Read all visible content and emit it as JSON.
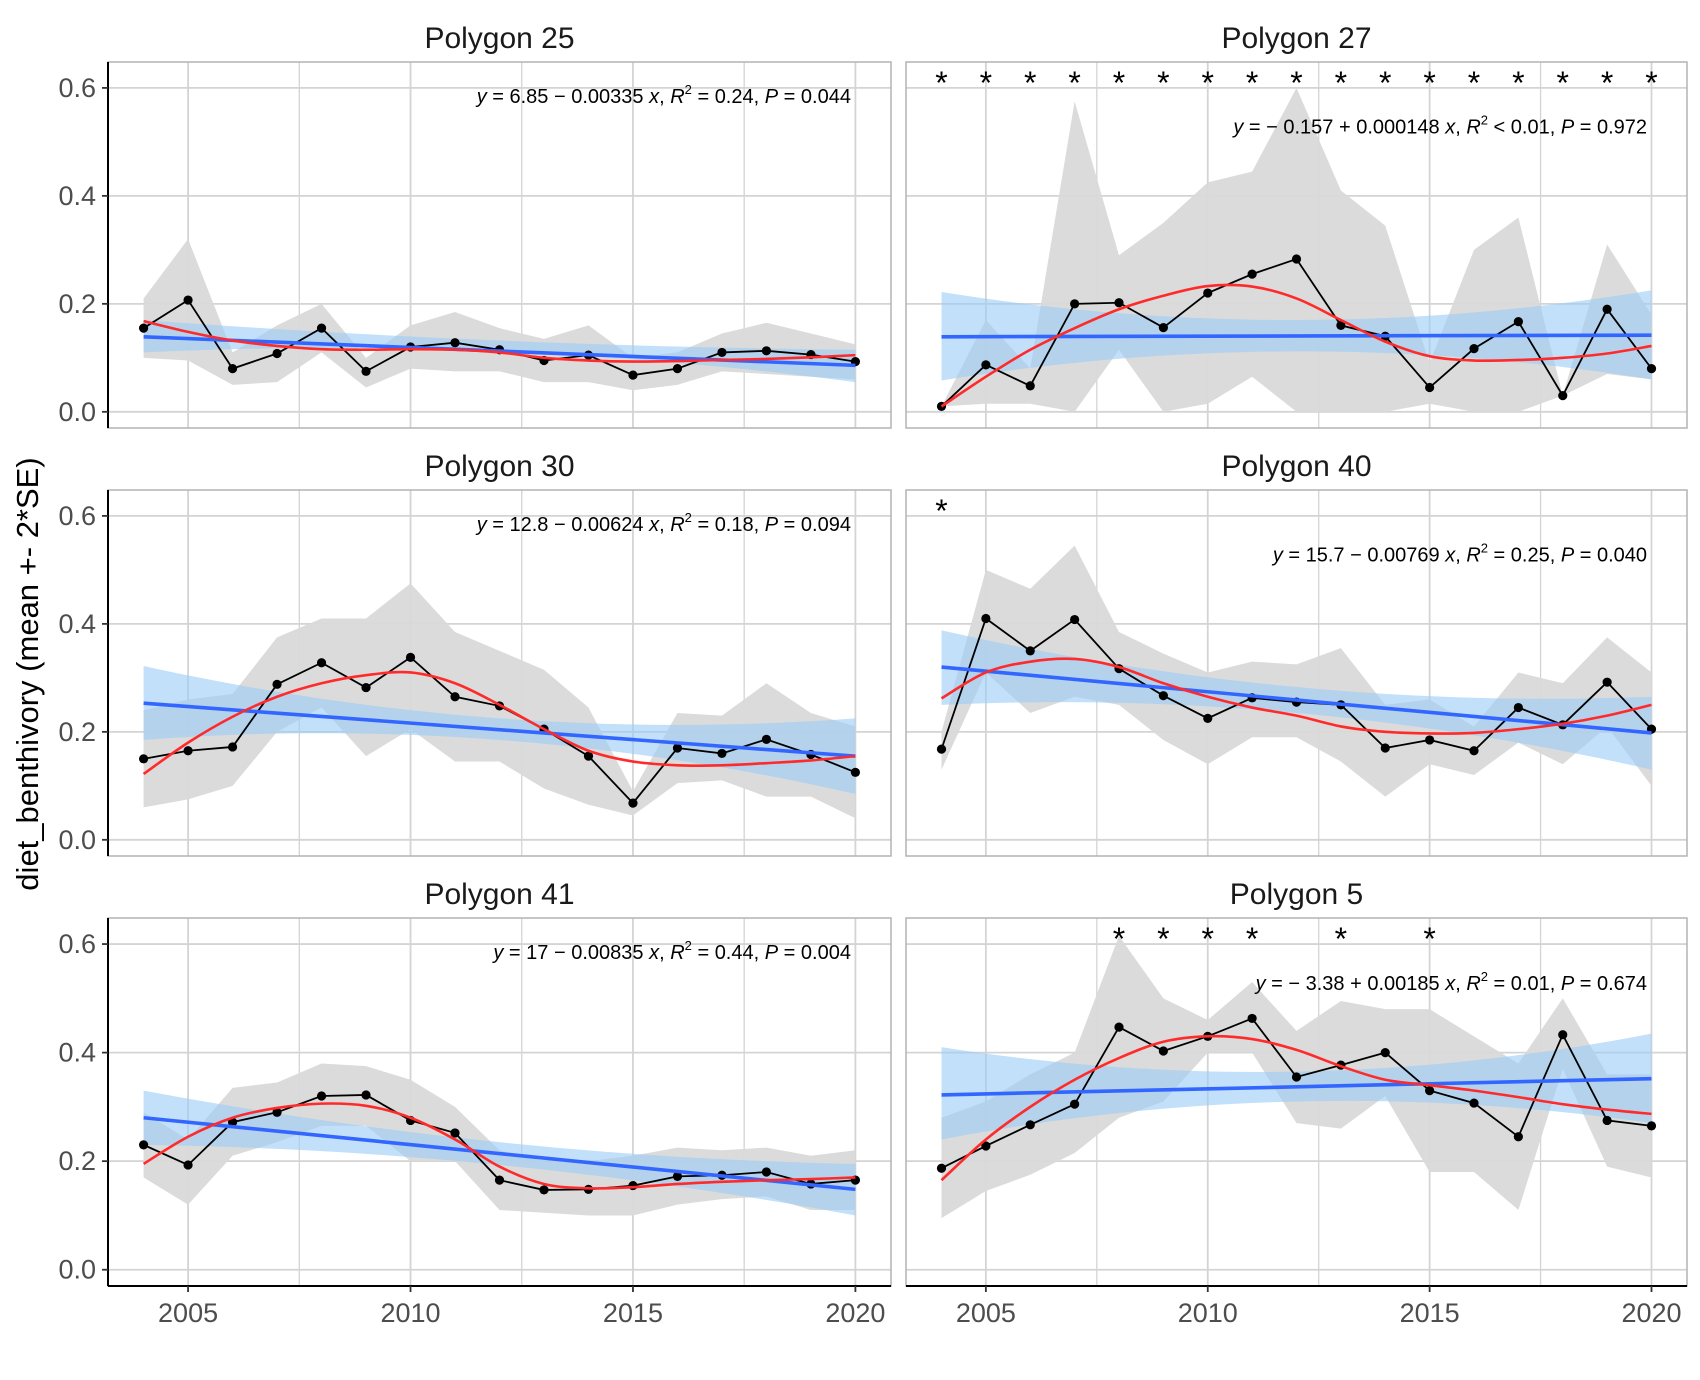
{
  "chart_data": {
    "type": "line",
    "ylabel": "diet_benthivory (mean +- 2*SE)",
    "xlabel": "",
    "xlim": [
      2003.2,
      2020.8
    ],
    "ylim": [
      -0.03,
      0.648
    ],
    "x_ticks": [
      2005,
      2010,
      2015,
      2020
    ],
    "x_tick_labels": [
      "2005",
      "2010",
      "2015",
      "2020"
    ],
    "y_ticks": [
      0,
      0.2,
      0.4,
      0.6
    ],
    "y_tick_labels": [
      "0.0",
      "0.2",
      "0.4",
      "0.6"
    ],
    "grid": true,
    "years": [
      2004,
      2005,
      2006,
      2007,
      2008,
      2009,
      2010,
      2011,
      2012,
      2013,
      2014,
      2015,
      2016,
      2017,
      2018,
      2019,
      2020
    ],
    "colors": {
      "mean_line": "#000000",
      "se_band": "#d9d9d9",
      "linear_fit": "#3366ff",
      "linear_ci": "#99ccf5",
      "loess": "#ff2a2a"
    },
    "panels": [
      {
        "title": "Polygon 25",
        "eq": {
          "rhs": "6.85 − 0.00335",
          "r2_op": "=",
          "r2": "0.24",
          "p": "0.044"
        },
        "mean": [
          0.155,
          0.207,
          0.08,
          0.108,
          0.155,
          0.075,
          0.12,
          0.128,
          0.115,
          0.095,
          0.105,
          0.068,
          0.08,
          0.11,
          0.113,
          0.106,
          0.093
        ],
        "se_upper": [
          0.21,
          0.32,
          0.11,
          0.16,
          0.2,
          0.1,
          0.16,
          0.185,
          0.155,
          0.135,
          0.16,
          0.1,
          0.11,
          0.145,
          0.165,
          0.145,
          0.125
        ],
        "se_lower": [
          0.1,
          0.095,
          0.05,
          0.055,
          0.11,
          0.045,
          0.08,
          0.075,
          0.075,
          0.055,
          0.055,
          0.04,
          0.05,
          0.075,
          0.07,
          0.065,
          0.06
        ],
        "loess": [
          0.168,
          0.148,
          0.132,
          0.122,
          0.116,
          0.115,
          0.116,
          0.115,
          0.11,
          0.1,
          0.095,
          0.093,
          0.094,
          0.096,
          0.098,
          0.101,
          0.105
        ],
        "linear_fit": [
          0.139,
          0.086
        ],
        "linear_ci_lower": [
          0.11,
          0.112,
          0.055
        ],
        "linear_ci_upper": [
          0.17,
          0.132,
          0.115
        ],
        "significant_years": []
      },
      {
        "title": "Polygon 27",
        "eq": {
          "rhs": "− 0.157 + 0.000148",
          "r2_op": "<",
          "r2": "0.01",
          "p": "0.972"
        },
        "mean": [
          0.01,
          0.087,
          0.048,
          0.2,
          0.202,
          0.156,
          0.22,
          0.255,
          0.283,
          0.16,
          0.14,
          0.045,
          0.117,
          0.167,
          0.03,
          0.19,
          0.08
        ],
        "se_upper": [
          0.01,
          0.17,
          0.08,
          0.575,
          0.29,
          0.35,
          0.425,
          0.445,
          0.6,
          0.41,
          0.345,
          0.09,
          0.3,
          0.36,
          0.03,
          0.31,
          0.18
        ],
        "se_lower": [
          0.01,
          0.015,
          0.015,
          0,
          0.115,
          0,
          0.015,
          0.065,
          0,
          0,
          0,
          0.015,
          0,
          0,
          0.03,
          0.07,
          0.06
        ],
        "loess": [
          0.01,
          0.065,
          0.115,
          0.155,
          0.19,
          0.215,
          0.233,
          0.232,
          0.21,
          0.17,
          0.13,
          0.103,
          0.095,
          0.096,
          0.1,
          0.108,
          0.122
        ],
        "linear_fit": [
          0.139,
          0.142
        ],
        "linear_ci_lower": [
          0.058,
          0.112,
          0.06
        ],
        "linear_ci_upper": [
          0.222,
          0.17,
          0.225
        ],
        "significant_years": [
          2004,
          2005,
          2006,
          2007,
          2008,
          2009,
          2010,
          2011,
          2012,
          2013,
          2014,
          2015,
          2016,
          2017,
          2018,
          2019,
          2020
        ]
      },
      {
        "title": "Polygon 30",
        "eq": {
          "rhs": "12.8 − 0.00624",
          "r2_op": "=",
          "r2": "0.18",
          "p": "0.094"
        },
        "mean": [
          0.15,
          0.165,
          0.172,
          0.288,
          0.328,
          0.282,
          0.338,
          0.265,
          0.248,
          0.205,
          0.155,
          0.068,
          0.17,
          0.16,
          0.186,
          0.158,
          0.125
        ],
        "se_upper": [
          0.24,
          0.26,
          0.27,
          0.375,
          0.41,
          0.41,
          0.475,
          0.385,
          0.35,
          0.315,
          0.245,
          0.09,
          0.235,
          0.23,
          0.29,
          0.235,
          0.21
        ],
        "se_lower": [
          0.06,
          0.075,
          0.1,
          0.2,
          0.245,
          0.155,
          0.205,
          0.145,
          0.145,
          0.095,
          0.065,
          0.045,
          0.105,
          0.11,
          0.08,
          0.08,
          0.04
        ],
        "loess": [
          0.122,
          0.18,
          0.228,
          0.265,
          0.29,
          0.305,
          0.31,
          0.29,
          0.25,
          0.205,
          0.165,
          0.145,
          0.138,
          0.138,
          0.142,
          0.147,
          0.155
        ],
        "linear_fit": [
          0.253,
          0.155
        ],
        "linear_ci_lower": [
          0.185,
          0.185,
          0.085
        ],
        "linear_ci_upper": [
          0.322,
          0.225,
          0.225
        ],
        "significant_years": []
      },
      {
        "title": "Polygon 40",
        "eq": {
          "rhs": "15.7 − 0.00769",
          "r2_op": "=",
          "r2": "0.25",
          "p": "0.040"
        },
        "mean": [
          0.168,
          0.41,
          0.35,
          0.408,
          0.317,
          0.267,
          0.225,
          0.263,
          0.255,
          0.25,
          0.17,
          0.185,
          0.165,
          0.245,
          0.213,
          0.292,
          0.205
        ],
        "se_upper": [
          0.2,
          0.5,
          0.465,
          0.545,
          0.385,
          0.345,
          0.31,
          0.33,
          0.325,
          0.355,
          0.25,
          0.26,
          0.21,
          0.31,
          0.29,
          0.375,
          0.31
        ],
        "se_lower": [
          0.13,
          0.31,
          0.235,
          0.265,
          0.25,
          0.185,
          0.14,
          0.19,
          0.19,
          0.145,
          0.08,
          0.14,
          0.12,
          0.18,
          0.14,
          0.21,
          0.1
        ],
        "loess": [
          0.262,
          0.31,
          0.33,
          0.335,
          0.32,
          0.29,
          0.265,
          0.245,
          0.23,
          0.21,
          0.2,
          0.197,
          0.198,
          0.205,
          0.215,
          0.23,
          0.25
        ],
        "linear_fit": [
          0.32,
          0.198
        ],
        "linear_ci_lower": [
          0.25,
          0.235,
          0.13
        ],
        "linear_ci_upper": [
          0.388,
          0.283,
          0.265
        ],
        "significant_years": [
          2004
        ]
      },
      {
        "title": "Polygon 41",
        "eq": {
          "rhs": "17 − 0.00835",
          "r2_op": "=",
          "r2": "0.44",
          "p": "0.004"
        },
        "mean": [
          0.23,
          0.193,
          0.272,
          0.29,
          0.32,
          0.322,
          0.275,
          0.252,
          0.165,
          0.147,
          0.148,
          0.155,
          0.172,
          0.174,
          0.18,
          0.158,
          0.165
        ],
        "se_upper": [
          0.29,
          0.24,
          0.335,
          0.345,
          0.38,
          0.375,
          0.35,
          0.3,
          0.22,
          0.2,
          0.2,
          0.21,
          0.225,
          0.22,
          0.225,
          0.21,
          0.22
        ],
        "se_lower": [
          0.17,
          0.12,
          0.21,
          0.235,
          0.265,
          0.265,
          0.2,
          0.2,
          0.11,
          0.105,
          0.1,
          0.1,
          0.12,
          0.13,
          0.135,
          0.11,
          0.11
        ],
        "loess": [
          0.195,
          0.245,
          0.28,
          0.298,
          0.306,
          0.302,
          0.28,
          0.24,
          0.19,
          0.158,
          0.15,
          0.152,
          0.158,
          0.162,
          0.165,
          0.167,
          0.17
        ],
        "linear_fit": [
          0.28,
          0.148
        ],
        "linear_ci_lower": [
          0.23,
          0.193,
          0.1
        ],
        "linear_ci_upper": [
          0.33,
          0.235,
          0.195
        ],
        "significant_years": []
      },
      {
        "title": "Polygon 5",
        "eq": {
          "rhs": "− 3.38 + 0.00185",
          "r2_op": "=",
          "r2": "0.01",
          "p": "0.674"
        },
        "mean": [
          0.187,
          0.228,
          0.267,
          0.305,
          0.447,
          0.403,
          0.43,
          0.463,
          0.355,
          0.377,
          0.4,
          0.33,
          0.307,
          0.245,
          0.433,
          0.275,
          0.265
        ],
        "se_upper": [
          0.28,
          0.31,
          0.36,
          0.4,
          0.615,
          0.5,
          0.46,
          0.53,
          0.44,
          0.495,
          0.48,
          0.48,
          0.43,
          0.38,
          0.5,
          0.36,
          0.36
        ],
        "se_lower": [
          0.095,
          0.145,
          0.175,
          0.215,
          0.28,
          0.31,
          0.4,
          0.4,
          0.27,
          0.26,
          0.32,
          0.18,
          0.18,
          0.11,
          0.37,
          0.19,
          0.17
        ],
        "loess": [
          0.165,
          0.24,
          0.3,
          0.35,
          0.39,
          0.42,
          0.43,
          0.425,
          0.405,
          0.375,
          0.35,
          0.34,
          0.33,
          0.318,
          0.305,
          0.295,
          0.287
        ],
        "linear_fit": [
          0.322,
          0.352
        ],
        "linear_ci_lower": [
          0.24,
          0.31,
          0.27
        ],
        "linear_ci_upper": [
          0.41,
          0.365,
          0.435
        ],
        "significant_years": [
          2008,
          2009,
          2010,
          2011,
          2013,
          2015
        ]
      }
    ]
  }
}
